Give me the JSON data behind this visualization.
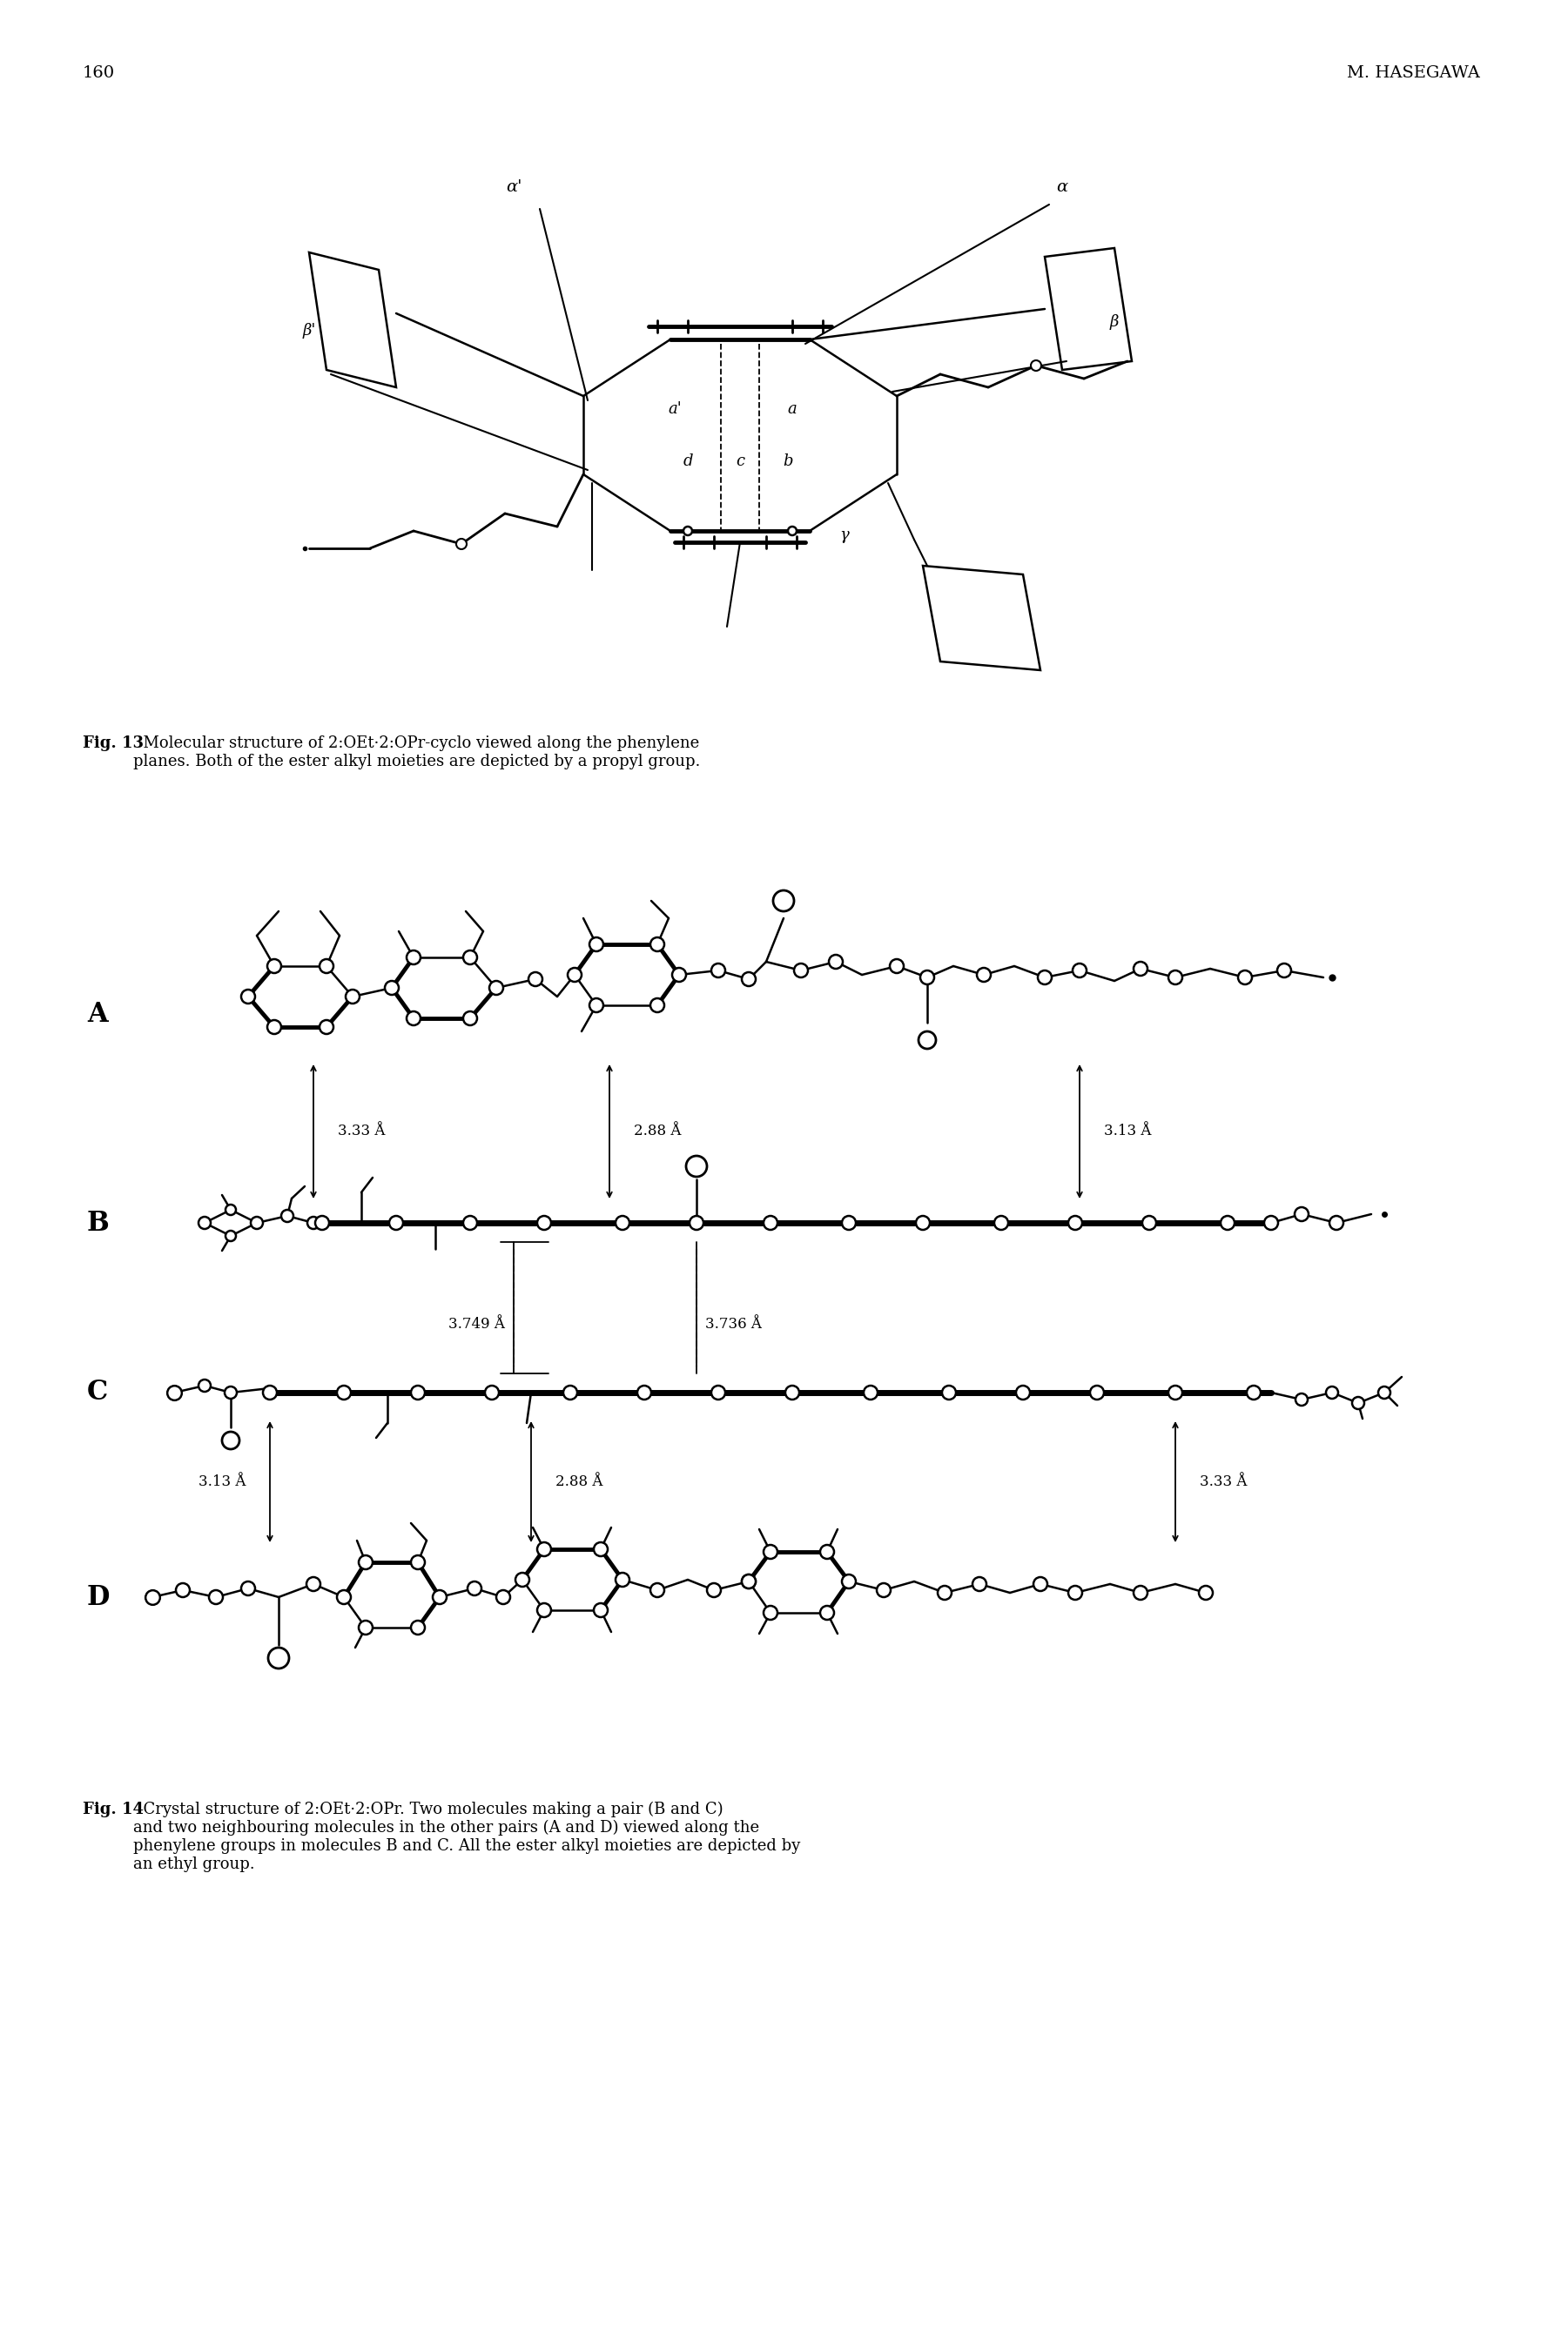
{
  "page_num": "160",
  "header_right": "M. HASEGAWA",
  "fig13_caption_bold": "Fig. 13",
  "fig13_caption_text": "  Molecular structure of 2:OEt·2:OPr-cyclo viewed along the phenylene\nplanes. Both of the ester alkyl moieties are depicted by a propyl group.",
  "fig14_caption_bold": "Fig. 14",
  "fig14_caption_text": "  Crystal structure of 2:OEt·2:OPr. Two molecules making a pair (B and C)\nand two neighbouring molecules in the other pairs (A and D) viewed along the\nphenylene groups in molecules B and C. All the ester alkyl moieties are depicted by\nan ethyl group.",
  "background_color": "#ffffff",
  "line_color": "#000000",
  "label_A": "A",
  "label_B": "B",
  "label_C": "C",
  "label_D": "D",
  "dist_AB_left": "3.33 Å",
  "dist_AB_mid": "2.88 Å",
  "dist_AB_right": "3.13 Å",
  "dist_BC_left": "3.749 Å",
  "dist_BC_right": "3.736 Å",
  "dist_CD_left": "3.13 Å",
  "dist_CD_mid": "2.88 Å",
  "dist_CD_right": "3.33 Å"
}
